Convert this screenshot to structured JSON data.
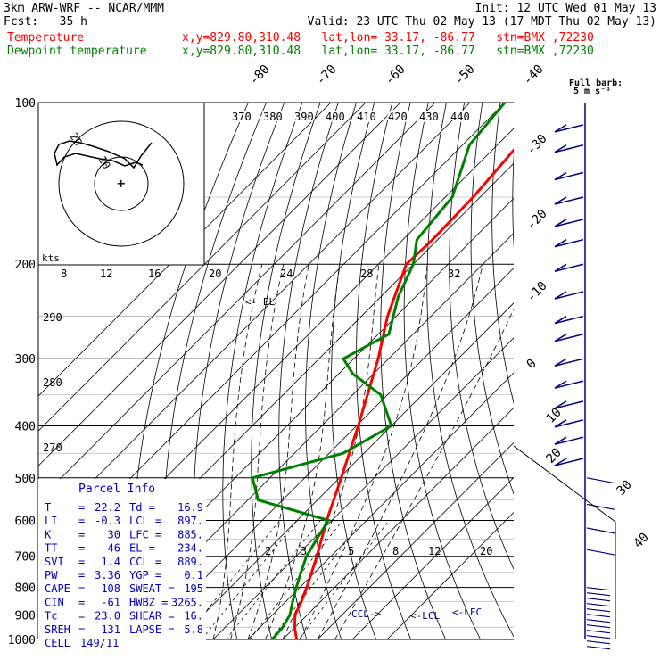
{
  "header": {
    "line1_left": "3km ARW-WRF -- NCAR/MMM",
    "line1_right": "Init: 12 UTC Wed 01 May 13",
    "line2_left": "Fcst:   35 h",
    "line2_right": "Valid: 23 UTC Thu 02 May 13 (17 MDT Thu 02 May 13)",
    "temp_label": "Temperature",
    "temp_loc": "x,y=829.80,310.48   lat,lon= 33.17, -86.77   stn=BMX ,72230",
    "dew_label": "Dewpoint temperature",
    "dew_loc": "x,y=829.80,310.48   lat,lon= 33.17, -86.77   stn=BMX ,72230"
  },
  "colors": {
    "temperature": "#ff0000",
    "dewpoint": "#008000",
    "parcel_info": "#0000c0",
    "wind": "#000080"
  },
  "wind_legend": {
    "title": "Full barb:",
    "value": "5 m s⁻¹"
  },
  "hodograph": {
    "unit": "kts",
    "ring_labels": [
      "25",
      "10"
    ]
  },
  "parcel_info": {
    "title": "Parcel Info",
    "rows": [
      {
        "k1": "T",
        "v1": "22.2",
        "k2": "Td",
        "v2": "16.9"
      },
      {
        "k1": "LI",
        "v1": "-0.3",
        "k2": "LCL",
        "v2": "897."
      },
      {
        "k1": "K",
        "v1": "30",
        "k2": "LFC",
        "v2": "885."
      },
      {
        "k1": "TT",
        "v1": "46",
        "k2": "EL",
        "v2": "234."
      },
      {
        "k1": "SVI",
        "v1": "1.4",
        "k2": "CCL",
        "v2": "889."
      },
      {
        "k1": "PW",
        "v1": "3.36",
        "k2": "YGP",
        "v2": "0.1"
      },
      {
        "k1": "CAPE",
        "v1": "108",
        "k2": "SWEAT",
        "v2": "195"
      },
      {
        "k1": "CIN",
        "v1": "-61",
        "k2": "HWBZ",
        "v2": "3265."
      },
      {
        "k1": "Tc",
        "v1": "23.0",
        "k2": "SHEAR",
        "v2": "16."
      },
      {
        "k1": "SREH",
        "v1": "131",
        "k2": "LAPSE",
        "v2": "5.8"
      },
      {
        "k1": "CELL",
        "v1": "149/11",
        "k2": "",
        "v2": ""
      }
    ]
  },
  "chart_data": {
    "type": "line",
    "title": "",
    "y_axis": {
      "label": "",
      "scale": "log",
      "ticks": [
        100,
        200,
        300,
        400,
        500,
        600,
        700,
        800,
        900,
        1000
      ]
    },
    "isotherm_labels": [
      "-80",
      "-70",
      "-60",
      "-50",
      "-40",
      "-30",
      "-20",
      "-10",
      "0",
      "10",
      "20",
      "30",
      "40"
    ],
    "theta_labels": [
      "370",
      "380",
      "390",
      "400",
      "410",
      "420",
      "430",
      "440"
    ],
    "theta_labels_left": [
      "290",
      "280",
      "270"
    ],
    "mixing_ratio_labels_upper": [
      "8",
      "12",
      "16",
      "20",
      "24",
      "28",
      "32"
    ],
    "mixing_ratio_labels_lower": [
      "2",
      "3",
      "5",
      "8",
      "12",
      "20"
    ],
    "level_labels": [
      "EL",
      "CCL",
      "LCL",
      "LFC"
    ],
    "series": [
      {
        "name": "Temperature",
        "points": [
          [
            1000,
            24
          ],
          [
            950,
            20
          ],
          [
            900,
            16.5
          ],
          [
            850,
            14.5
          ],
          [
            800,
            12
          ],
          [
            700,
            6
          ],
          [
            600,
            -1.5
          ],
          [
            500,
            -9.5
          ],
          [
            400,
            -19.5
          ],
          [
            300,
            -33
          ],
          [
            250,
            -42.5
          ],
          [
            200,
            -52
          ],
          [
            180,
            -51.5
          ],
          [
            150,
            -52
          ],
          [
            120,
            -54
          ],
          [
            100,
            -59
          ]
        ]
      },
      {
        "name": "Dewpoint temperature",
        "points": [
          [
            1000,
            17
          ],
          [
            950,
            16.5
          ],
          [
            900,
            15
          ],
          [
            850,
            12
          ],
          [
            800,
            9
          ],
          [
            750,
            6
          ],
          [
            700,
            3
          ],
          [
            650,
            1
          ],
          [
            600,
            -1
          ],
          [
            550,
            -27
          ],
          [
            500,
            -35
          ],
          [
            450,
            -16
          ],
          [
            400,
            -10
          ],
          [
            350,
            -22
          ],
          [
            320,
            -36
          ],
          [
            300,
            -43
          ],
          [
            270,
            -37
          ],
          [
            230,
            -45
          ],
          [
            200,
            -50
          ],
          [
            180,
            -56
          ],
          [
            150,
            -58
          ],
          [
            120,
            -68
          ],
          [
            100,
            -70
          ]
        ]
      }
    ],
    "ylim": [
      1000,
      100
    ],
    "grid": true
  }
}
